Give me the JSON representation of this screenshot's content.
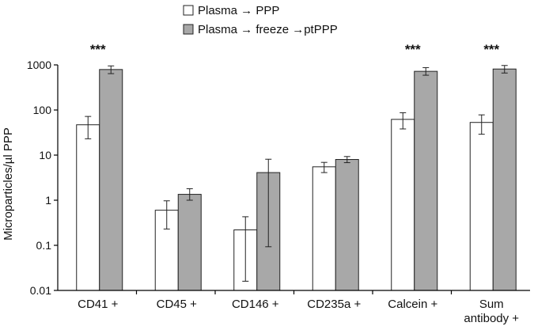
{
  "chart_data": {
    "type": "bar",
    "title": "",
    "xlabel": "",
    "ylabel": "Microparticles/µl PPP",
    "yscale": "log",
    "ylim": [
      0.01,
      1000
    ],
    "yticks": [
      {
        "value": 0.01,
        "label": "0.01"
      },
      {
        "value": 0.1,
        "label": "0.1"
      },
      {
        "value": 1,
        "label": "1"
      },
      {
        "value": 10,
        "label": "10"
      },
      {
        "value": 100,
        "label": "100"
      },
      {
        "value": 1000,
        "label": "1000"
      }
    ],
    "categories": [
      [
        "CD41 +"
      ],
      [
        "CD45 +"
      ],
      [
        "CD146 +"
      ],
      [
        "CD235a +"
      ],
      [
        "Calcein +"
      ],
      [
        "Sum",
        "antibody +"
      ]
    ],
    "legend_position": "top-center",
    "grid": false,
    "series": [
      {
        "name": "Plasma → PPP",
        "color": "#ffffff",
        "values": [
          47,
          0.6,
          0.22,
          5.5,
          62,
          53
        ],
        "error_low": [
          23,
          0.23,
          0.016,
          4.1,
          38,
          29
        ],
        "error_high": [
          72,
          0.97,
          0.43,
          6.9,
          87,
          78
        ]
      },
      {
        "name": "Plasma → freeze →ptPPP",
        "color": "#a8a8a8",
        "values": [
          790,
          1.35,
          4.1,
          8.0,
          720,
          810
        ],
        "error_low": [
          640,
          1.0,
          0.093,
          6.8,
          590,
          660
        ],
        "error_high": [
          950,
          1.8,
          8.1,
          9.3,
          870,
          970
        ]
      }
    ],
    "annotations": [
      "***",
      "",
      "",
      "",
      "***",
      "***"
    ]
  }
}
